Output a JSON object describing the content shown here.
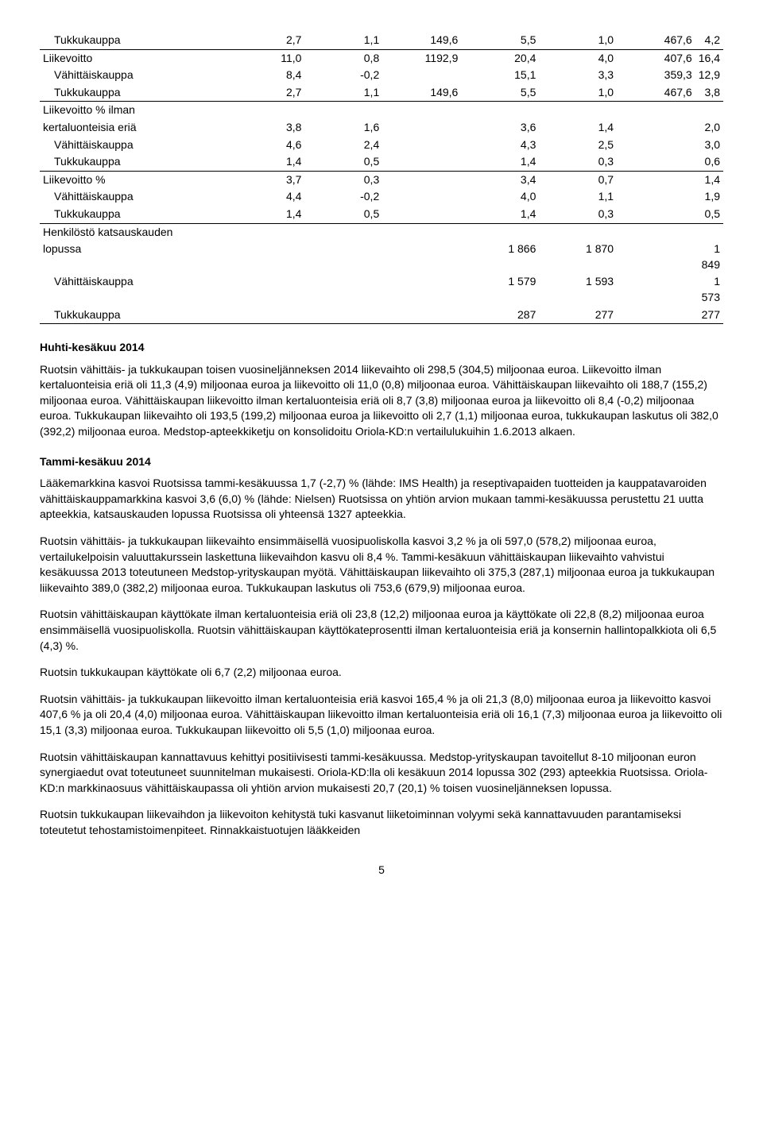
{
  "table": {
    "rows": [
      {
        "label": "Tukkukauppa",
        "indent": true,
        "underline": true,
        "c": [
          "2,7",
          "1,1",
          "149,6",
          "5,5",
          "1,0",
          "467,6",
          "4,2"
        ]
      },
      {
        "label": "Liikevoitto",
        "indent": false,
        "underline": false,
        "c": [
          "11,0",
          "0,8",
          "1192,9",
          "20,4",
          "4,0",
          "407,6",
          "16,4"
        ]
      },
      {
        "label": "Vähittäiskauppa",
        "indent": true,
        "underline": false,
        "c": [
          "8,4",
          "-0,2",
          "",
          "15,1",
          "3,3",
          "359,3",
          "12,9"
        ]
      },
      {
        "label": "Tukkukauppa",
        "indent": true,
        "underline": true,
        "c": [
          "2,7",
          "1,1",
          "149,6",
          "5,5",
          "1,0",
          "467,6",
          "3,8"
        ]
      },
      {
        "label": "Liikevoitto % ilman",
        "indent": false,
        "underline": false,
        "c": [
          "",
          "",
          "",
          "",
          "",
          "",
          ""
        ]
      },
      {
        "label": "kertaluonteisia eriä",
        "indent": false,
        "underline": false,
        "c": [
          "3,8",
          "1,6",
          "",
          "3,6",
          "1,4",
          "",
          "2,0"
        ]
      },
      {
        "label": "Vähittäiskauppa",
        "indent": true,
        "underline": false,
        "c": [
          "4,6",
          "2,4",
          "",
          "4,3",
          "2,5",
          "",
          "3,0"
        ]
      },
      {
        "label": "Tukkukauppa",
        "indent": true,
        "underline": true,
        "c": [
          "1,4",
          "0,5",
          "",
          "1,4",
          "0,3",
          "",
          "0,6"
        ]
      },
      {
        "label": "Liikevoitto %",
        "indent": false,
        "underline": false,
        "c": [
          "3,7",
          "0,3",
          "",
          "3,4",
          "0,7",
          "",
          "1,4"
        ]
      },
      {
        "label": "Vähittäiskauppa",
        "indent": true,
        "underline": false,
        "c": [
          "4,4",
          "-0,2",
          "",
          "4,0",
          "1,1",
          "",
          "1,9"
        ]
      },
      {
        "label": "Tukkukauppa",
        "indent": true,
        "underline": true,
        "c": [
          "1,4",
          "0,5",
          "",
          "1,4",
          "0,3",
          "",
          "0,5"
        ]
      },
      {
        "label": "Henkilöstö katsauskauden",
        "indent": false,
        "underline": false,
        "c": [
          "",
          "",
          "",
          "",
          "",
          "",
          ""
        ]
      },
      {
        "label": "lopussa",
        "indent": false,
        "underline": false,
        "c": [
          "",
          "",
          "",
          "1 866",
          "1 870",
          "",
          "1 849"
        ]
      },
      {
        "label": "Vähittäiskauppa",
        "indent": true,
        "underline": false,
        "c": [
          "",
          "",
          "",
          "1 579",
          "1 593",
          "",
          "1 573"
        ]
      },
      {
        "label": "Tukkukauppa",
        "indent": true,
        "underline": true,
        "c": [
          "",
          "",
          "",
          "287",
          "277",
          "",
          "277"
        ]
      }
    ]
  },
  "headings": {
    "h1": "Huhti-kesäkuu 2014",
    "h2": "Tammi-kesäkuu 2014"
  },
  "paragraphs": {
    "p1": "Ruotsin vähittäis- ja tukkukaupan toisen vuosineljänneksen 2014 liikevaihto oli 298,5 (304,5) miljoonaa euroa. Liikevoitto ilman kertaluonteisia eriä oli 11,3 (4,9) miljoonaa euroa ja liikevoitto oli 11,0 (0,8) miljoonaa euroa. Vähittäiskaupan liikevaihto oli 188,7 (155,2) miljoonaa euroa. Vähittäiskaupan liikevoitto ilman kertaluonteisia eriä oli 8,7 (3,8) miljoonaa euroa ja liikevoitto oli 8,4 (-0,2) miljoonaa euroa. Tukkukaupan liikevaihto oli 193,5 (199,2) miljoonaa euroa ja liikevoitto oli 2,7 (1,1) miljoonaa euroa, tukkukaupan laskutus oli 382,0 (392,2) miljoonaa euroa. Medstop-apteekkiketju on konsolidoitu Oriola-KD:n vertailulukuihin 1.6.2013 alkaen.",
    "p2": "Lääkemarkkina kasvoi Ruotsissa tammi-kesäkuussa 1,7 (-2,7) % (lähde: IMS Health) ja reseptivapaiden tuotteiden ja kauppatavaroiden vähittäiskauppamarkkina kasvoi 3,6 (6,0) % (lähde: Nielsen) Ruotsissa on yhtiön arvion mukaan tammi-kesäkuussa perustettu 21 uutta apteekkia, katsauskauden lopussa Ruotsissa oli yhteensä 1327 apteekkia.",
    "p3": "Ruotsin vähittäis- ja tukkukaupan liikevaihto ensimmäisellä vuosipuoliskolla kasvoi 3,2 % ja oli 597,0 (578,2) miljoonaa euroa, vertailukelpoisin valuuttakurssein laskettuna liikevaihdon kasvu oli 8,4 %. Tammi-kesäkuun vähittäiskaupan liikevaihto vahvistui kesäkuussa 2013 toteutuneen Medstop-yrityskaupan myötä. Vähittäiskaupan liikevaihto oli 375,3 (287,1) miljoonaa euroa ja tukkukaupan liikevaihto 389,0 (382,2) miljoonaa euroa. Tukkukaupan laskutus oli 753,6 (679,9) miljoonaa euroa.",
    "p4": "Ruotsin vähittäiskaupan käyttökate ilman kertaluonteisia eriä oli 23,8 (12,2) miljoonaa euroa ja käyttökate oli 22,8 (8,2) miljoonaa euroa ensimmäisellä vuosipuoliskolla. Ruotsin vähittäiskaupan käyttökateprosentti ilman kertaluonteisia eriä ja konsernin hallintopalkkiota oli 6,5 (4,3) %.",
    "p5": "Ruotsin tukkukaupan käyttökate oli 6,7 (2,2) miljoonaa euroa.",
    "p6": "Ruotsin vähittäis- ja tukkukaupan liikevoitto ilman kertaluonteisia eriä kasvoi 165,4 % ja oli 21,3 (8,0) miljoonaa euroa ja liikevoitto kasvoi 407,6 % ja oli 20,4 (4,0) miljoonaa euroa. Vähittäiskaupan liikevoitto ilman kertaluonteisia eriä oli 16,1 (7,3) miljoonaa euroa ja liikevoitto oli 15,1 (3,3) miljoonaa euroa. Tukkukaupan liikevoitto oli 5,5 (1,0) miljoonaa euroa.",
    "p7": "Ruotsin vähittäiskaupan kannattavuus kehittyi positiivisesti tammi-kesäkuussa. Medstop-yrityskaupan tavoitellut 8-10 miljoonan euron synergiaedut ovat toteutuneet suunnitelman mukaisesti. Oriola-KD:lla oli kesäkuun 2014 lopussa 302 (293) apteekkia Ruotsissa. Oriola-KD:n markkinaosuus vähittäiskaupassa oli yhtiön arvion mukaisesti 20,7 (20,1) % toisen vuosineljänneksen lopussa.",
    "p8": "Ruotsin tukkukaupan liikevaihdon ja liikevoiton kehitystä tuki kasvanut liiketoiminnan volyymi sekä kannattavuuden parantamiseksi toteutetut tehostamistoimenpiteet. Rinnakkaistuotujen lääkkeiden"
  },
  "pageNumber": "5"
}
